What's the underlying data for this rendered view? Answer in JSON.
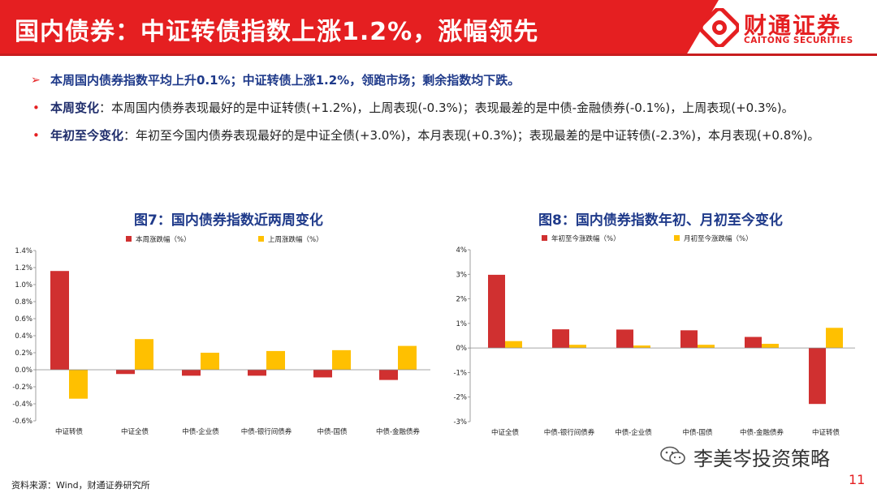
{
  "header": {
    "title": "国内债券：中证转债指数上涨1.2%，涨幅领先",
    "logo_cn": "财通证券",
    "logo_en": "CAITONG SECURITIES",
    "accent": "#e51f21"
  },
  "summary": {
    "headline": "本周国内债券指数平均上升0.1%；中证转债上涨1.2%，领跑市场；剩余指数均下跌。",
    "items": [
      {
        "label": "本周变化",
        "text": "：本周国内债券表现最好的是中证转债(+1.2%)，上周表现(-0.3%)；表现最差的是中债-金融债券(-0.1%)，上周表现(+0.3%)。"
      },
      {
        "label": "年初至今变化",
        "text": "：年初至今国内债券表现最好的是中证全债(+3.0%)，本月表现(+0.3%)；表现最差的是中证转债(-2.3%)，本月表现(+0.8%)。"
      }
    ]
  },
  "charts": {
    "left_title": "图7：国内债券指数近两周变化",
    "right_title": "图8：国内债券指数年初、月初至今变化"
  },
  "chart_data": [
    {
      "type": "bar",
      "title": "图7：国内债券指数近两周变化",
      "categories": [
        "中证转债",
        "中证全债",
        "中债-企业债",
        "中债-银行间债券",
        "中债-国债",
        "中债-金融债券"
      ],
      "series": [
        {
          "name": "本周涨跌幅（%）",
          "color": "#d03030",
          "values": [
            1.16,
            -0.05,
            -0.07,
            -0.07,
            -0.09,
            -0.12
          ]
        },
        {
          "name": "上周涨跌幅（%）",
          "color": "#ffc000",
          "values": [
            -0.34,
            0.36,
            0.2,
            0.22,
            0.23,
            0.28
          ]
        }
      ],
      "ylim": [
        -0.6,
        1.4
      ],
      "yticks": [
        "1.4%",
        "1.2%",
        "1.0%",
        "0.8%",
        "0.6%",
        "0.4%",
        "0.2%",
        "0.0%",
        "-0.2%",
        "-0.4%",
        "-0.6%"
      ],
      "legend": "top"
    },
    {
      "type": "bar",
      "title": "图8：国内债券指数年初、月初至今变化",
      "categories": [
        "中证全债",
        "中债-银行间债券",
        "中债-企业债",
        "中债-国债",
        "中债-金融债券",
        "中证转债"
      ],
      "series": [
        {
          "name": "年初至今涨跌幅（%）",
          "color": "#d03030",
          "values": [
            2.98,
            0.76,
            0.75,
            0.72,
            0.45,
            -2.28
          ]
        },
        {
          "name": "月初至今涨跌幅（%）",
          "color": "#ffc000",
          "values": [
            0.28,
            0.13,
            0.1,
            0.13,
            0.17,
            0.82
          ]
        }
      ],
      "ylim": [
        -3,
        4
      ],
      "yticks": [
        "4%",
        "3%",
        "2%",
        "1%",
        "0%",
        "-1%",
        "-2%",
        "-3%"
      ],
      "legend": "top"
    }
  ],
  "footer": {
    "source": "资料来源：Wind，财通证券研究所",
    "page": "11",
    "watermark": "李美岑投资策略",
    "watermark_icon": "wechat-icon"
  }
}
